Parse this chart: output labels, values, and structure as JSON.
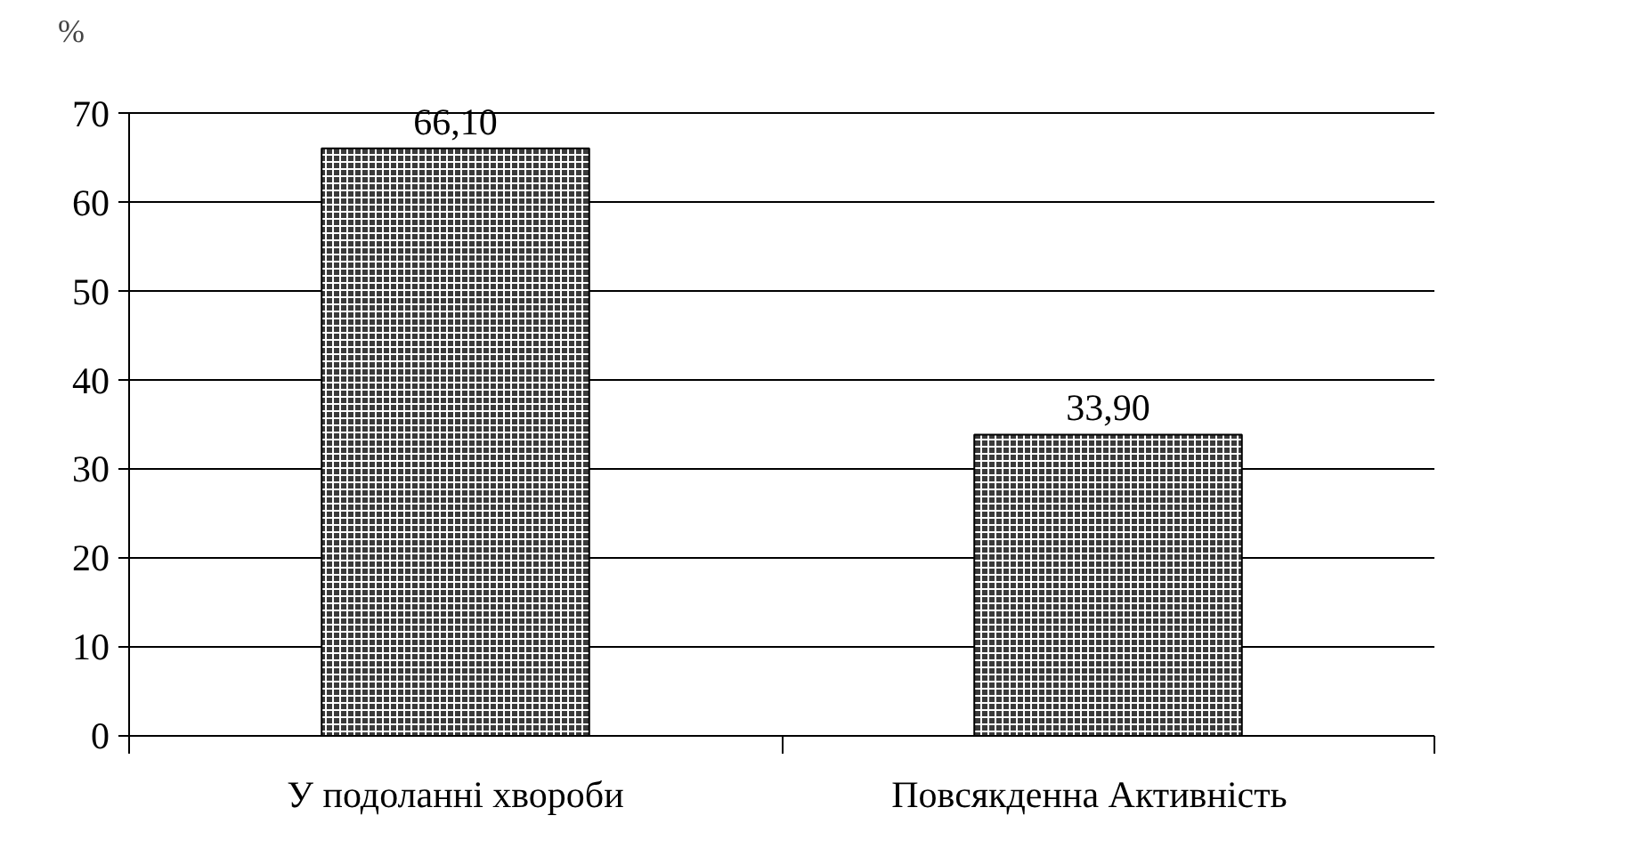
{
  "chart_data": {
    "type": "bar",
    "ylabel": "%",
    "categories": [
      "У подоланні хвороби",
      "Повсякденна     Активність"
    ],
    "values": [
      66.1,
      33.9
    ],
    "value_labels": [
      "66,10",
      "33,90"
    ],
    "color": "#3a3a3a",
    "ylim": [
      0,
      70
    ],
    "yticks": [
      0,
      10,
      20,
      30,
      40,
      50,
      60,
      70
    ],
    "grid": "y"
  }
}
